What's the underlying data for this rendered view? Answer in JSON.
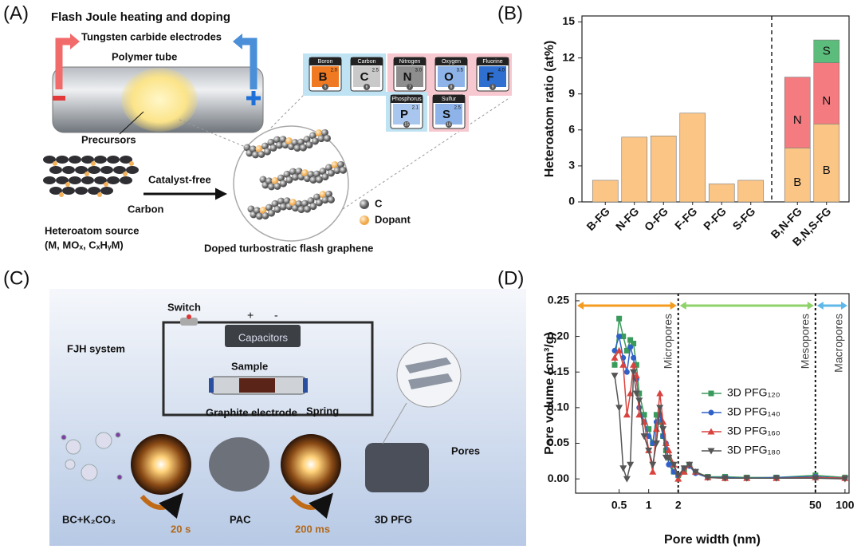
{
  "panel_labels": [
    "(A)",
    "(B)",
    "(C)",
    "(D)"
  ],
  "panel_a": {
    "title": "Flash Joule heating and doping",
    "electrodes": "Tungsten carbide electrodes",
    "tube": "Polymer tube",
    "precursors": "Precursors",
    "process": "Catalyst-free",
    "carbon": "Carbon",
    "source": "Heteroatom source",
    "source_formula": "(M, MOₓ, CₓHᵧM)",
    "legend_c": "C",
    "legend_dopant": "Dopant",
    "product": "Doped turbostratic flash graphene",
    "elements": [
      {
        "name": "Boron",
        "symbol": "B",
        "electronegativity": "2.0",
        "number": 5,
        "color": "#f07a22"
      },
      {
        "name": "Carbon",
        "symbol": "C",
        "electronegativity": "2.5",
        "number": 6,
        "color": "#c9c9c9"
      },
      {
        "name": "Nitrogen",
        "symbol": "N",
        "electronegativity": "3.0",
        "number": 7,
        "color": "#8e8e8e"
      },
      {
        "name": "Oxygen",
        "symbol": "O",
        "electronegativity": "3.5",
        "number": 8,
        "color": "#8db3e8"
      },
      {
        "name": "Fluorine",
        "symbol": "F",
        "electronegativity": "4.0",
        "number": 9,
        "color": "#2f6fd0"
      },
      {
        "name": "Phosphorus",
        "symbol": "P",
        "electronegativity": "2.1",
        "number": 15,
        "color": "#a9c6ee"
      },
      {
        "name": "Sulfur",
        "symbol": "S",
        "electronegativity": "2.5",
        "number": 16,
        "color": "#8db3e8"
      }
    ]
  },
  "panel_c": {
    "switch": "Switch",
    "plus": "+",
    "minus": "-",
    "capacitors": "Capacitors",
    "system": "FJH system",
    "sample": "Sample",
    "electrode": "Graphite electrode",
    "spring": "Spring",
    "pores": "Pores",
    "precursor": "BC+K₂CO₃",
    "step1": "20 s",
    "intermediate": "PAC",
    "step2": "200 ms",
    "product": "3D PFG"
  },
  "chart_data": [
    {
      "type": "bar",
      "ylabel": "Heteroatom ratio (at%)",
      "categories": [
        "B-FG",
        "N-FG",
        "O-FG",
        "F-FG",
        "P-FG",
        "S-FG",
        "B,N-FG",
        "B,N,S-FG"
      ],
      "series": [
        {
          "color": "#fbc586",
          "values": [
            1.8,
            5.4,
            5.5,
            7.4,
            1.5,
            1.8,
            null,
            null
          ]
        },
        {
          "name": "B",
          "color": "#fbc586",
          "values": [
            null,
            null,
            null,
            null,
            null,
            null,
            4.5,
            6.5
          ]
        },
        {
          "name": "N",
          "color": "#f47b80",
          "values": [
            null,
            null,
            null,
            null,
            null,
            null,
            5.9,
            5.1
          ]
        },
        {
          "name": "S",
          "color": "#5cbc7b",
          "values": [
            null,
            null,
            null,
            null,
            null,
            null,
            null,
            1.9
          ]
        }
      ],
      "ylim": [
        0,
        15.5
      ],
      "yticks": [
        0,
        3,
        6,
        9,
        12,
        15
      ]
    },
    {
      "type": "line",
      "xlabel": "Pore width (nm)",
      "ylabel": "Pore volume (cm³/g)",
      "log_x": true,
      "x": [
        0.45,
        0.5,
        0.55,
        0.6,
        0.65,
        0.7,
        0.75,
        0.8,
        0.9,
        1.0,
        1.1,
        1.2,
        1.3,
        1.4,
        1.5,
        1.6,
        1.8,
        2.0,
        2.3,
        2.6,
        3,
        4,
        6,
        10,
        20,
        50,
        100
      ],
      "series": [
        {
          "name": "3D PFG₁₂₀",
          "color": "#3a9a5b",
          "marker": "square",
          "values": [
            0.16,
            0.225,
            0.2,
            0.18,
            0.195,
            0.19,
            0.16,
            0.12,
            0.09,
            0.07,
            0.05,
            0.09,
            0.08,
            0.06,
            0.04,
            0.03,
            0.01,
            0.005,
            0.01,
            0.02,
            0.01,
            0.003,
            0.003,
            0.002,
            0.002,
            0.005,
            0.002
          ]
        },
        {
          "name": "3D PFG₁₄₀",
          "color": "#2f62c8",
          "marker": "circle",
          "values": [
            0.18,
            0.2,
            0.17,
            0.15,
            0.185,
            0.17,
            0.14,
            0.1,
            0.08,
            0.06,
            0.05,
            0.08,
            0.09,
            0.06,
            0.05,
            0.02,
            0.01,
            0.005,
            0.015,
            0.018,
            0.008,
            0.002,
            0.002,
            0.001,
            0.002,
            0.003,
            0.001
          ]
        },
        {
          "name": "3D PFG₁₆₀",
          "color": "#d9433f",
          "marker": "triangle",
          "values": [
            0.17,
            0.18,
            0.16,
            0.09,
            0.12,
            0.16,
            0.145,
            0.09,
            0.08,
            0.04,
            0.01,
            0.07,
            0.12,
            0.08,
            0.05,
            0.04,
            0.02,
            0.0,
            0.01,
            0.02,
            0.01,
            0.002,
            0.001,
            0.001,
            0.001,
            0.002,
            0.001
          ]
        },
        {
          "name": "3D PFG₁₈₀",
          "color": "#555555",
          "marker": "triangle-down",
          "values": [
            0.145,
            0.1,
            0.015,
            0.0,
            0.02,
            0.15,
            0.12,
            0.11,
            0.06,
            0.04,
            0.02,
            0.05,
            0.1,
            0.07,
            0.03,
            0.03,
            0.02,
            0.005,
            0.015,
            0.02,
            0.01,
            0.002,
            0.001,
            0.001,
            0.001,
            0.001,
            0.0
          ]
        }
      ],
      "xlim": [
        0.18,
        110
      ],
      "xticks": [
        0.5,
        1,
        2,
        50,
        100
      ],
      "ylim": [
        -0.02,
        0.26
      ],
      "yticks": [
        {
          "value": 0,
          "label": "0.00"
        },
        0.05,
        {
          "value": 0.1,
          "label": "0.10"
        },
        0.15,
        {
          "value": 0.2,
          "label": "0.20"
        },
        0.25
      ],
      "boundaries": [
        2,
        50
      ],
      "regions": [
        {
          "label": "Micropores",
          "color": "#f39c1f"
        },
        {
          "label": "Mesopores",
          "color": "#8fd16a"
        },
        {
          "label": "Macropores",
          "color": "#5fb8e8"
        }
      ]
    }
  ]
}
